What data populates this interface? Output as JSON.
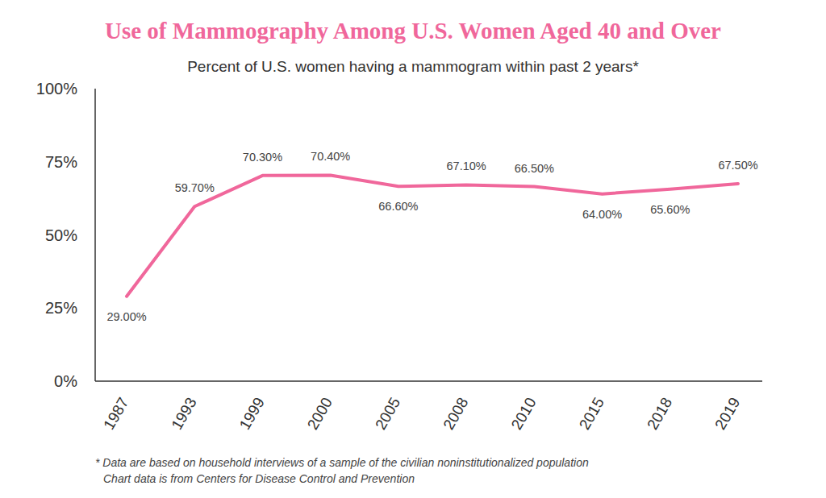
{
  "chart_data": {
    "type": "line",
    "title": "Use of Mammography Among U.S. Women Aged 40 and Over",
    "subtitle": "Percent of U.S. women having a mammogram within past 2 years*",
    "categories": [
      "1987",
      "1993",
      "1999",
      "2000",
      "2005",
      "2008",
      "2010",
      "2015",
      "2018",
      "2019"
    ],
    "values": [
      29.0,
      59.7,
      70.3,
      70.4,
      66.6,
      67.1,
      66.5,
      64.0,
      65.6,
      67.5
    ],
    "value_labels": [
      "29.00%",
      "59.70%",
      "70.30%",
      "70.40%",
      "66.60%",
      "67.10%",
      "66.50%",
      "64.00%",
      "65.60%",
      "67.50%"
    ],
    "color": "#f0679b",
    "ylim": [
      0,
      100
    ],
    "yticks": [
      {
        "value": 0,
        "label": "0%"
      },
      {
        "value": 25,
        "label": "25%"
      },
      {
        "value": 50,
        "label": "50%"
      },
      {
        "value": 75,
        "label": "75%"
      },
      {
        "value": 100,
        "label": "100%"
      }
    ],
    "grid": false,
    "data_labels": true,
    "notes": [
      "* Data are based on household interviews of a sample of the civilian noninstitutionalized population",
      "Chart data is from Centers for Disease Control and Prevention"
    ]
  }
}
